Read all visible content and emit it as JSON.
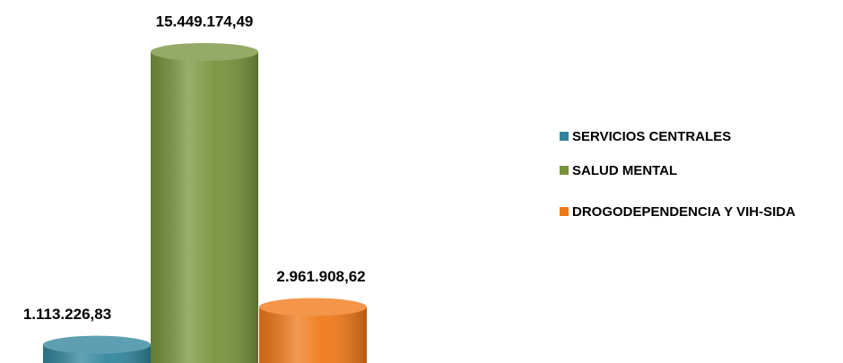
{
  "chart_data": {
    "type": "bar",
    "series": [
      {
        "name": "SERVICIOS CENTRALES",
        "color": "#31859c",
        "values": [
          1113226.83
        ],
        "value_labels": [
          "1.113.226,83"
        ]
      },
      {
        "name": "SALUD MENTAL",
        "color": "#77933c",
        "values": [
          15449174.49
        ],
        "value_labels": [
          "15.449.174,49"
        ]
      },
      {
        "name": "DROGODEPENDENCIA Y VIH-SIDA",
        "color": "#f07818",
        "values": [
          2961908.62
        ],
        "value_labels": [
          "2.961.908,62"
        ]
      }
    ],
    "legend": "right"
  }
}
